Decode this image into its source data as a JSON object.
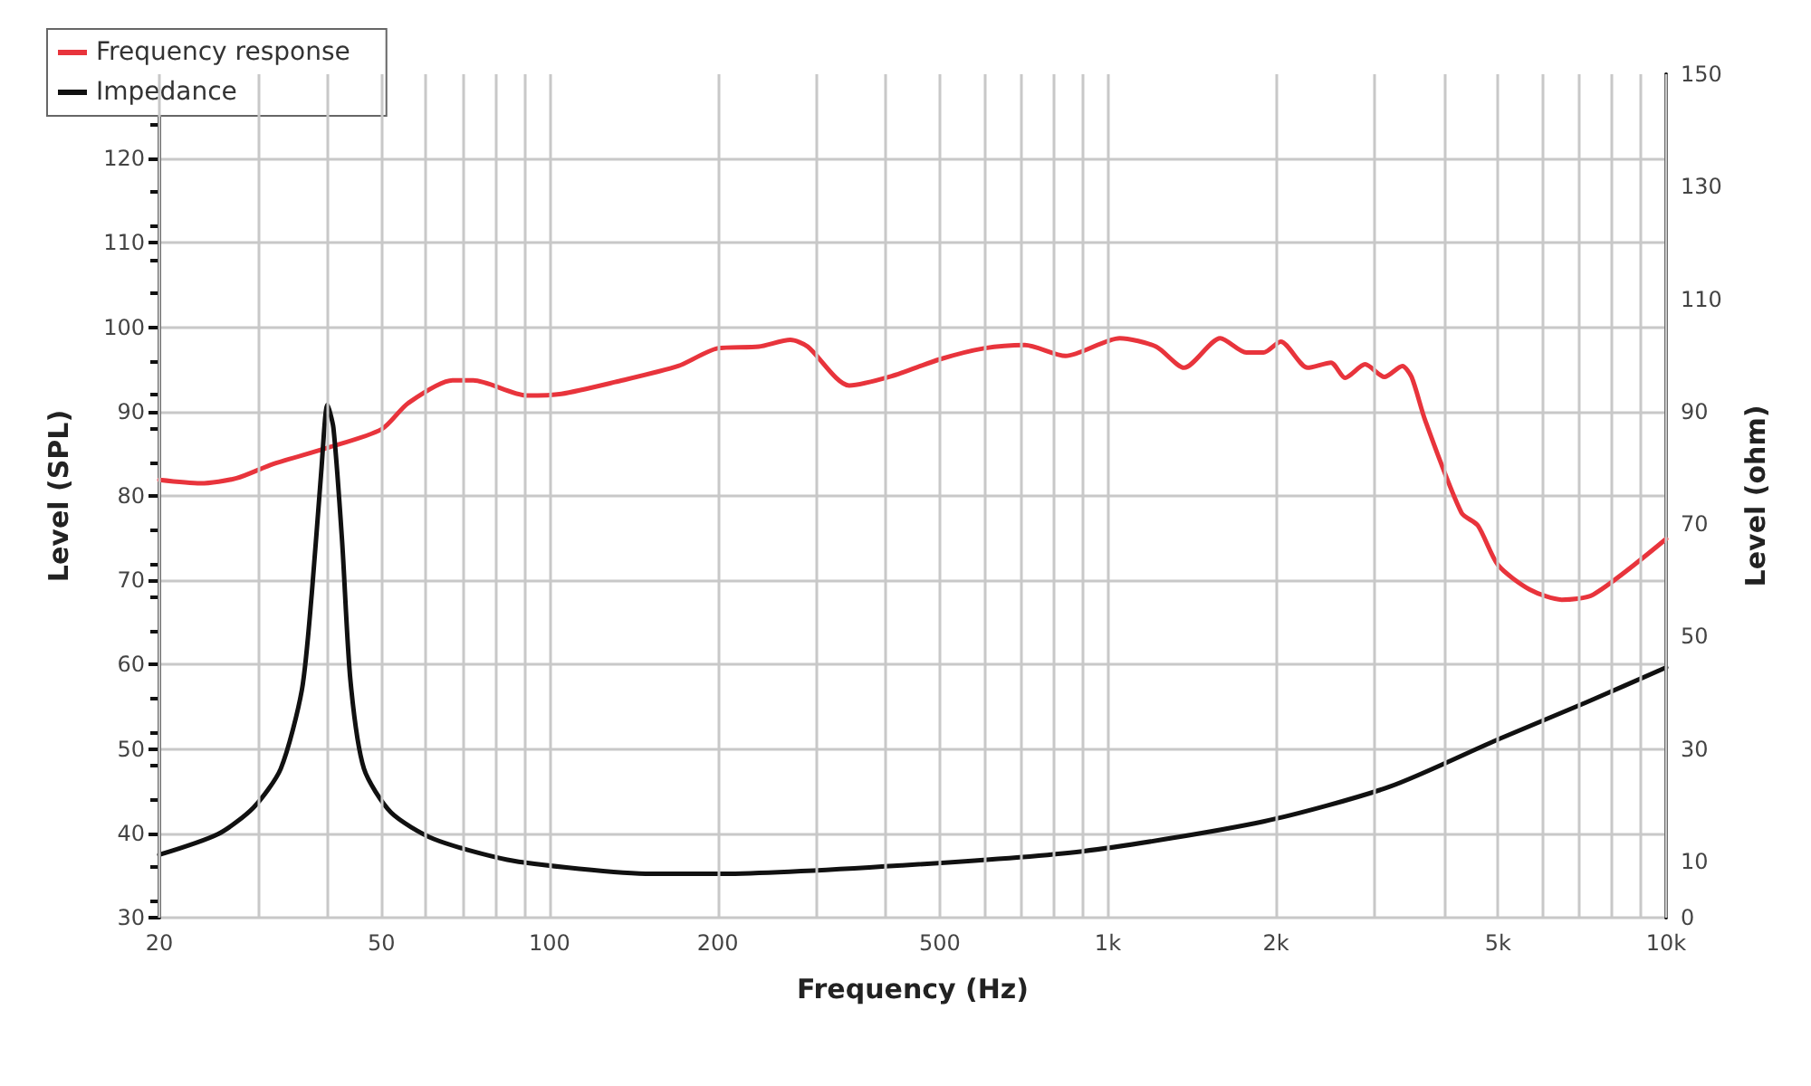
{
  "chart_data": {
    "type": "line",
    "xlabel": "Frequency (Hz)",
    "ylabel": "Level (SPL)",
    "y2label": "Level (ohm)",
    "log": "x",
    "grid": true,
    "legend": "top left",
    "marker": "none",
    "line_style": "solid",
    "xlim": [
      20,
      10000
    ],
    "xticks": [
      20,
      {
        "value": 30,
        "label": null
      },
      {
        "value": 40,
        "label": null
      },
      50,
      {
        "value": 60,
        "label": null
      },
      {
        "value": 70,
        "label": null
      },
      {
        "value": 80,
        "label": null
      },
      {
        "value": 90,
        "label": null
      },
      100,
      200,
      {
        "value": 300,
        "label": null
      },
      {
        "value": 400,
        "label": null
      },
      500,
      {
        "value": 600,
        "label": null
      },
      {
        "value": 700,
        "label": null
      },
      {
        "value": 800,
        "label": null
      },
      {
        "value": 900,
        "label": null
      },
      {
        "value": 1000,
        "label": "1k"
      },
      {
        "value": 2000,
        "label": "2k"
      },
      {
        "value": 3000,
        "label": null
      },
      {
        "value": 4000,
        "label": null
      },
      {
        "value": 5000,
        "label": "5k"
      },
      {
        "value": 6000,
        "label": null
      },
      {
        "value": 7000,
        "label": null
      },
      {
        "value": 8000,
        "label": null
      },
      {
        "value": 9000,
        "label": null
      },
      {
        "value": 10000,
        "label": "10k"
      }
    ],
    "ylim": [
      30,
      130
    ],
    "yticks": [
      30,
      40,
      50,
      60,
      70,
      80,
      90,
      100,
      110,
      120
    ],
    "y2lim": [
      0,
      150
    ],
    "y2ticks": [
      0,
      10,
      30,
      50,
      70,
      90,
      110,
      130,
      150
    ],
    "series": [
      {
        "name": "Frequency response",
        "color": "#e8343c",
        "x": [
          20,
          23.7,
          27.5,
          32,
          40,
          50,
          55.8,
          67,
          73,
          91,
          105,
          131,
          170,
          200,
          237,
          270,
          290,
          344,
          410,
          500,
          600,
          710,
          840,
          1050,
          1220,
          1370,
          1590,
          1770,
          1900,
          2040,
          2280,
          2510,
          2660,
          2890,
          3130,
          3370,
          3500,
          3700,
          4300,
          4600,
          5000,
          5700,
          6500,
          7400,
          10000
        ],
        "values": [
          81.9,
          81.5,
          82.1,
          83.8,
          85.7,
          87.9,
          91,
          93.7,
          93.7,
          91.9,
          92.1,
          93.5,
          95.4,
          97.5,
          97.7,
          98.5,
          97.7,
          93.1,
          94.2,
          96.2,
          97.5,
          97.9,
          96.6,
          98.7,
          97.7,
          95.2,
          98.7,
          97,
          97,
          98.3,
          95.2,
          95.8,
          94,
          95.6,
          94.1,
          95.4,
          94.1,
          89,
          78,
          76.5,
          71.8,
          68.9,
          67.7,
          68.3,
          74.9
        ]
      },
      {
        "name": "Impedance",
        "color": "#111111",
        "axis": "y2",
        "x": [
          20,
          25.5,
          29.5,
          33,
          36,
          37.5,
          39,
          40,
          41,
          42.5,
          44,
          46.5,
          52,
          62,
          84,
          113,
          152,
          204,
          428,
          900,
          1900,
          3200,
          5000,
          7200,
          10000
        ],
        "values": [
          11.2,
          14.9,
          19.6,
          26.5,
          40.5,
          57.6,
          79.4,
          91.2,
          87.1,
          66.9,
          42,
          26.5,
          18.7,
          14,
          10.3,
          8.7,
          7.8,
          7.8,
          9.3,
          11.8,
          17.1,
          23.3,
          31.7,
          38.3,
          44.5
        ]
      }
    ]
  }
}
